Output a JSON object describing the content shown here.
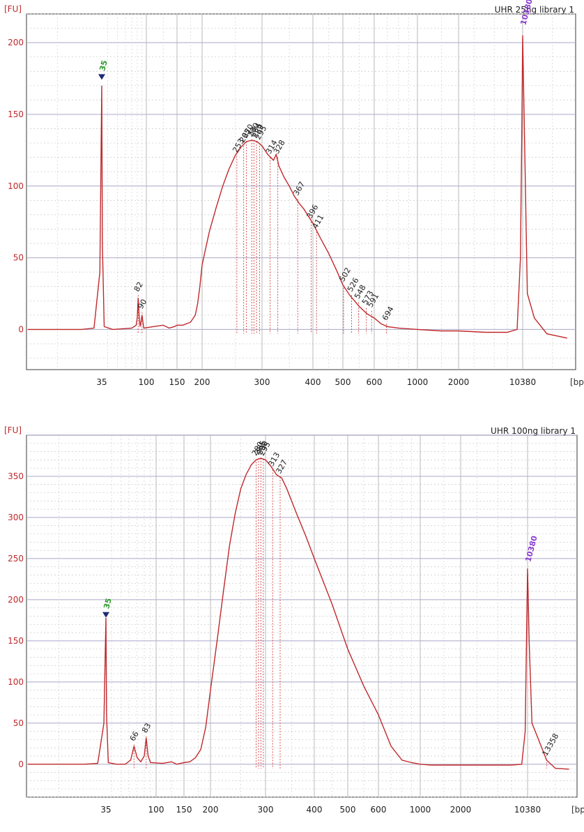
{
  "chart_data": [
    {
      "type": "line",
      "title": "UHR 25ng library 1",
      "ylabel": "[FU]",
      "xlabel": "[bp]",
      "ylim": [
        -28,
        220
      ],
      "yticks": [
        "0",
        "50",
        "100",
        "150",
        "200"
      ],
      "xticks": [
        "35",
        "100",
        "150",
        "200",
        "300",
        "400",
        "500",
        "600",
        "1000",
        "2000",
        "10380"
      ],
      "x_scale": "ladder",
      "grid": true,
      "series": [
        {
          "color": "#c0282b",
          "x": [
            20,
            30,
            33,
            34.5,
            35,
            35.5,
            37,
            45,
            70,
            78,
            80,
            82,
            84,
            86,
            88,
            90,
            92,
            94,
            110,
            125,
            135,
            145,
            150,
            160,
            175,
            185,
            190,
            195,
            200,
            210,
            220,
            230,
            240,
            250,
            260,
            270,
            280,
            290,
            300,
            310,
            320,
            325,
            330,
            340,
            350,
            360,
            370,
            380,
            400,
            420,
            450,
            480,
            500,
            520,
            550,
            575,
            600,
            650,
            700,
            800,
            1000,
            1500,
            2000,
            4000,
            7000,
            9000,
            9800,
            10200,
            10380,
            10600,
            11000,
            12000,
            14000,
            18000
          ],
          "y": [
            0,
            0,
            1,
            40,
            170,
            60,
            2,
            0,
            1,
            3,
            8,
            22,
            8,
            2,
            6,
            10,
            5,
            1,
            2,
            3,
            1,
            2,
            3,
            3,
            5,
            10,
            18,
            30,
            45,
            68,
            85,
            100,
            112,
            121,
            127,
            131,
            132,
            131,
            128,
            122,
            118,
            122,
            114,
            106,
            100,
            93,
            88,
            84,
            74,
            65,
            53,
            40,
            31,
            24,
            16,
            11,
            8,
            4,
            2,
            1,
            0,
            -1,
            -1,
            -2,
            -2,
            0,
            50,
            150,
            205,
            140,
            25,
            8,
            -3,
            -6
          ]
        }
      ],
      "markers": [
        {
          "label": "35",
          "x": 35,
          "y": 178,
          "color": "#2e9a2e"
        },
        {
          "label": "10380",
          "x": 10380,
          "y": 210,
          "color": "#8a3cd0"
        }
      ],
      "peak_labels": [
        {
          "label": "82",
          "x": 82,
          "y": 24
        },
        {
          "label": "90",
          "x": 90,
          "y": 12
        },
        {
          "label": "253",
          "x": 253,
          "y": 121
        },
        {
          "label": "265",
          "x": 265,
          "y": 128
        },
        {
          "label": "270",
          "x": 270,
          "y": 131
        },
        {
          "label": "280",
          "x": 280,
          "y": 132
        },
        {
          "label": "284",
          "x": 284,
          "y": 132
        },
        {
          "label": "289",
          "x": 289,
          "y": 131
        },
        {
          "label": "295",
          "x": 295,
          "y": 130
        },
        {
          "label": "314",
          "x": 314,
          "y": 120
        },
        {
          "label": "328",
          "x": 328,
          "y": 120
        },
        {
          "label": "367",
          "x": 367,
          "y": 91
        },
        {
          "label": "396",
          "x": 396,
          "y": 75
        },
        {
          "label": "411",
          "x": 411,
          "y": 68
        },
        {
          "label": "502",
          "x": 502,
          "y": 31
        },
        {
          "label": "526",
          "x": 526,
          "y": 24
        },
        {
          "label": "548",
          "x": 548,
          "y": 19
        },
        {
          "label": "573",
          "x": 573,
          "y": 15
        },
        {
          "label": "591",
          "x": 591,
          "y": 13
        },
        {
          "label": "694",
          "x": 694,
          "y": 4
        }
      ]
    },
    {
      "type": "line",
      "title": "UHR 100ng library 1",
      "ylabel": "[FU]",
      "xlabel": "[bp]",
      "ylim": [
        -40,
        400
      ],
      "yticks": [
        "0",
        "50",
        "100",
        "150",
        "200",
        "250",
        "300",
        "350"
      ],
      "xticks": [
        "35",
        "100",
        "150",
        "200",
        "300",
        "400",
        "500",
        "600",
        "1000",
        "2000",
        "10380"
      ],
      "x_scale": "ladder",
      "grid": true,
      "series": [
        {
          "color": "#c0282b",
          "x": [
            20,
            30,
            33,
            34.5,
            35,
            35.5,
            37,
            45,
            55,
            62,
            66,
            70,
            75,
            80,
            83,
            86,
            90,
            110,
            125,
            135,
            150,
            160,
            170,
            180,
            190,
            200,
            210,
            220,
            230,
            240,
            250,
            260,
            270,
            280,
            290,
            300,
            310,
            320,
            330,
            340,
            360,
            380,
            400,
            450,
            500,
            550,
            600,
            700,
            800,
            900,
            1000,
            1200,
            1500,
            2000,
            4000,
            7000,
            9000,
            9800,
            10200,
            10380,
            10600,
            11000,
            12000,
            13358,
            15000,
            18000
          ],
          "y": [
            0,
            0,
            1,
            50,
            178,
            60,
            2,
            0,
            0,
            5,
            22,
            8,
            3,
            10,
            32,
            10,
            2,
            1,
            3,
            0,
            2,
            3,
            8,
            18,
            45,
            90,
            150,
            210,
            265,
            305,
            335,
            352,
            364,
            370,
            372,
            370,
            362,
            352,
            348,
            335,
            305,
            278,
            250,
            195,
            140,
            95,
            60,
            22,
            5,
            2,
            0,
            -1,
            -1,
            -1,
            -1,
            -1,
            0,
            40,
            180,
            238,
            150,
            50,
            30,
            5,
            -5,
            -6
          ]
        }
      ],
      "markers": [
        {
          "label": "35",
          "x": 35,
          "y": 185,
          "color": "#2e9a2e"
        },
        {
          "label": "10380",
          "x": 10380,
          "y": 242,
          "color": "#8a3cd0"
        }
      ],
      "peak_labels": [
        {
          "label": "66",
          "x": 66,
          "y": 24
        },
        {
          "label": "83",
          "x": 83,
          "y": 34
        },
        {
          "label": "280",
          "x": 280,
          "y": 371
        },
        {
          "label": "285",
          "x": 285,
          "y": 372
        },
        {
          "label": "290",
          "x": 290,
          "y": 372
        },
        {
          "label": "295",
          "x": 295,
          "y": 371
        },
        {
          "label": "313",
          "x": 313,
          "y": 358
        },
        {
          "label": "327",
          "x": 327,
          "y": 349
        },
        {
          "label": "13358",
          "x": 13358,
          "y": 6
        }
      ]
    }
  ]
}
